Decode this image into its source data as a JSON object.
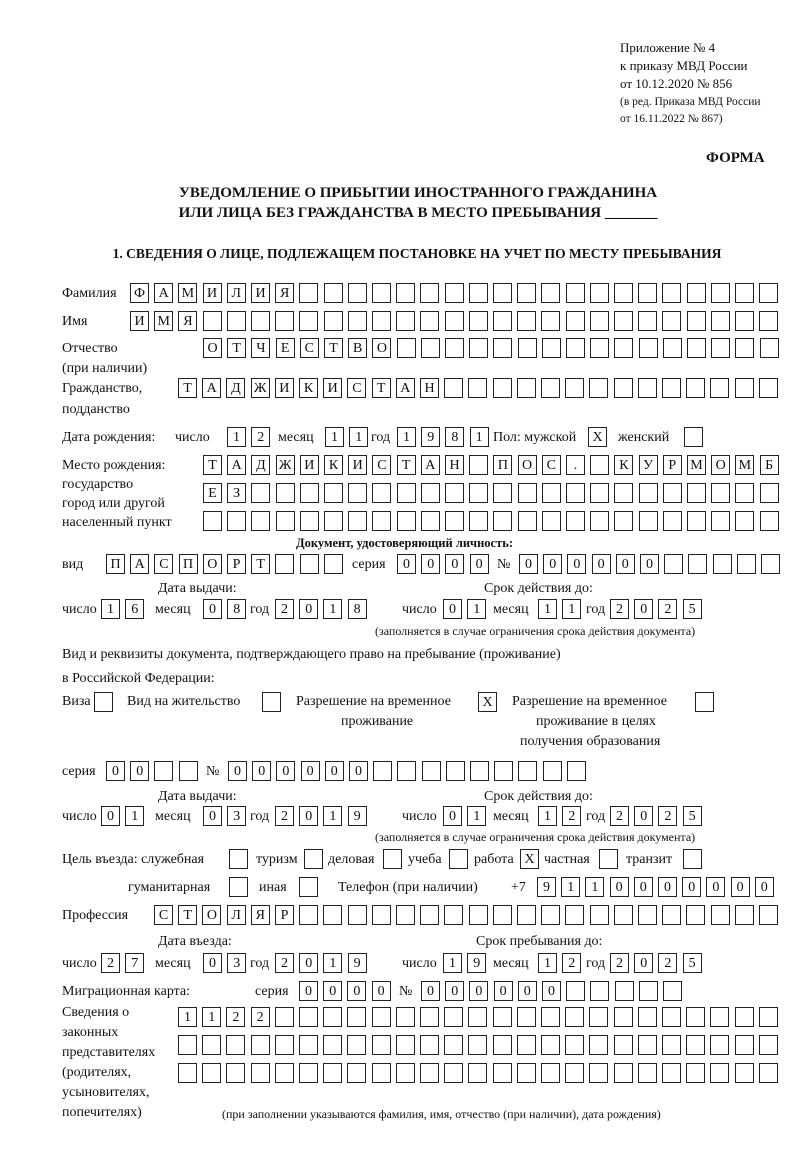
{
  "header": {
    "annex_line1": "Приложение № 4",
    "annex_line2": "к приказу МВД России",
    "annex_line3": "от 10.12.2020 № 856",
    "annex_line4": "(в ред. Приказа МВД России",
    "annex_line5": "от 16.11.2022 № 867)",
    "form_label": "ФОРМА",
    "title_line1": "УВЕДОМЛЕНИЕ О ПРИБЫТИИ ИНОСТРАННОГО ГРАЖДАНИНА",
    "title_line2": "ИЛИ ЛИЦА БЕЗ ГРАЖДАНСТВА В МЕСТО ПРЕБЫВАНИЯ _______",
    "section1": "1. СВЕДЕНИЯ О ЛИЦЕ, ПОДЛЕЖАЩЕМ ПОСТАНОВКЕ НА УЧЕТ ПО МЕСТУ ПРЕБЫВАНИЯ"
  },
  "labels": {
    "surname": "Фамилия",
    "name": "Имя",
    "patronymic1": "Отчество",
    "patronymic2": "(при наличии)",
    "citizenship1": "Гражданство,",
    "citizenship2": "подданство",
    "birth_date": "Дата рождения:",
    "day": "число",
    "month": "месяц",
    "year": "год",
    "sex": "Пол: мужской",
    "female": "женский",
    "birthplace1": "Место рождения:",
    "birthplace2": "государство",
    "birthplace3": "город или другой",
    "birthplace4": "населенный пункт",
    "id_doc": "Документ, удостоверяющий личность:",
    "kind": "вид",
    "series": "серия",
    "number": "№",
    "issue_date": "Дата выдачи:",
    "valid_until": "Срок действия до:",
    "validity_note": "(заполняется в случае ограничения срока действия документа)",
    "right_doc1": "Вид и реквизиты документа, подтверждающего право на пребывание (проживание)",
    "right_doc2": "в Российской Федерации:",
    "visa": "Виза",
    "residence": "Вид на жительство",
    "temp1": "Разрешение на временное",
    "temp2": "проживание",
    "edu1": "Разрешение на временное",
    "edu2": "проживание в целях",
    "edu3": "получения образования",
    "purpose": "Цель въезда: служебная",
    "tourism": "туризм",
    "business": "деловая",
    "study": "учеба",
    "work": "работа",
    "private": "частная",
    "transit": "транзит",
    "humanitarian": "гуманитарная",
    "other": "иная",
    "phone": "Телефон (при наличии)",
    "phone_prefix": "+7",
    "profession": "Профессия",
    "entry_date": "Дата въезда:",
    "stay_until": "Срок пребывания до:",
    "migration_card": "Миграционная карта:",
    "reps1": "Сведения о",
    "reps2": "законных",
    "reps3": "представителях",
    "reps4": "(родителях,",
    "reps5": "усыновителях,",
    "reps6": "попечителях)",
    "reps_note": "(при заполнении указываются фамилия, имя, отчество (при наличии), дата рождения)"
  },
  "person": {
    "surname": "ФАМИЛИЯ",
    "name": "ИМЯ",
    "patronymic": "ОТЧЕСТВО",
    "citizenship": "ТАДЖИКИСТАН",
    "birth_day": "12",
    "birth_month": "11",
    "birth_year": "1981",
    "male": "X",
    "female": "",
    "birthplace_row1": "ТАДЖИКИСТАН ПОС. КУРМОМБ",
    "birthplace_row2": "ЕЗ",
    "birthplace_row3": ""
  },
  "id_document": {
    "kind": "ПАСПОРТ",
    "series": "0000",
    "number": "000000",
    "issue_day": "16",
    "issue_month": "08",
    "issue_year": "2018",
    "valid_day": "01",
    "valid_month": "11",
    "valid_year": "2025"
  },
  "right_document": {
    "visa": "",
    "residence_permit": "",
    "temporary_residence": "X",
    "temporary_residence_education": "",
    "series": "00",
    "number": "000000",
    "issue_day": "01",
    "issue_month": "03",
    "issue_year": "2019",
    "valid_day": "01",
    "valid_month": "12",
    "valid_year": "2025"
  },
  "purpose": {
    "official": "",
    "tourism": "",
    "business": "",
    "study": "",
    "work": "X",
    "private": "",
    "transit": "",
    "humanitarian": "",
    "other": ""
  },
  "phone": "9110000000",
  "profession": "СТОЛЯР",
  "entry": {
    "entry_day": "27",
    "entry_month": "03",
    "entry_year": "2019",
    "stay_day": "19",
    "stay_month": "12",
    "stay_year": "2025"
  },
  "migration_card": {
    "series": "0000",
    "number": "000000"
  },
  "representatives": {
    "row1": "1122",
    "row2": "",
    "row3": ""
  }
}
